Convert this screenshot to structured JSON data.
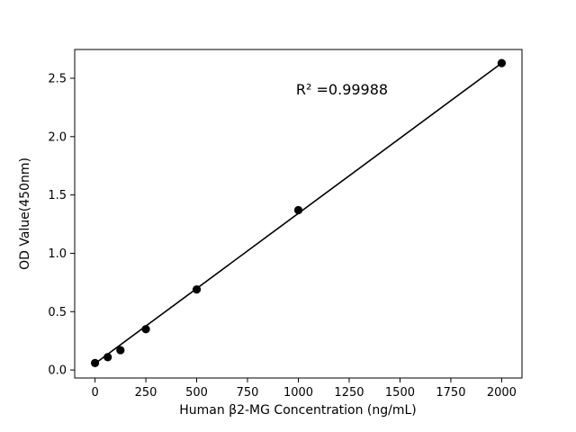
{
  "chart_data": {
    "type": "scatter",
    "title": "",
    "xlabel": "Human β2-MG Concentration (ng/mL)",
    "ylabel": "OD Value(450nm)",
    "annotation": "R² =0.99988",
    "x": [
      0,
      62.5,
      125,
      250,
      500,
      1000,
      2000
    ],
    "y": [
      0.06,
      0.11,
      0.17,
      0.35,
      0.69,
      1.37,
      2.63
    ],
    "fit_line": {
      "x": [
        0,
        2000
      ],
      "y": [
        0.055,
        2.63
      ]
    },
    "xlim": [
      -100,
      2100
    ],
    "ylim": [
      -0.0685,
      2.7465
    ],
    "xticks": [
      "0",
      "250",
      "500",
      "750",
      "1000",
      "1250",
      "1500",
      "1750",
      "2000"
    ],
    "yticks": [
      "0.0",
      "0.5",
      "1.0",
      "1.5",
      "2.0",
      "2.5"
    ],
    "grid": false,
    "legend_position": "none",
    "line_color": "#000000",
    "marker_color": "#000000",
    "background_color": "#ffffff"
  }
}
